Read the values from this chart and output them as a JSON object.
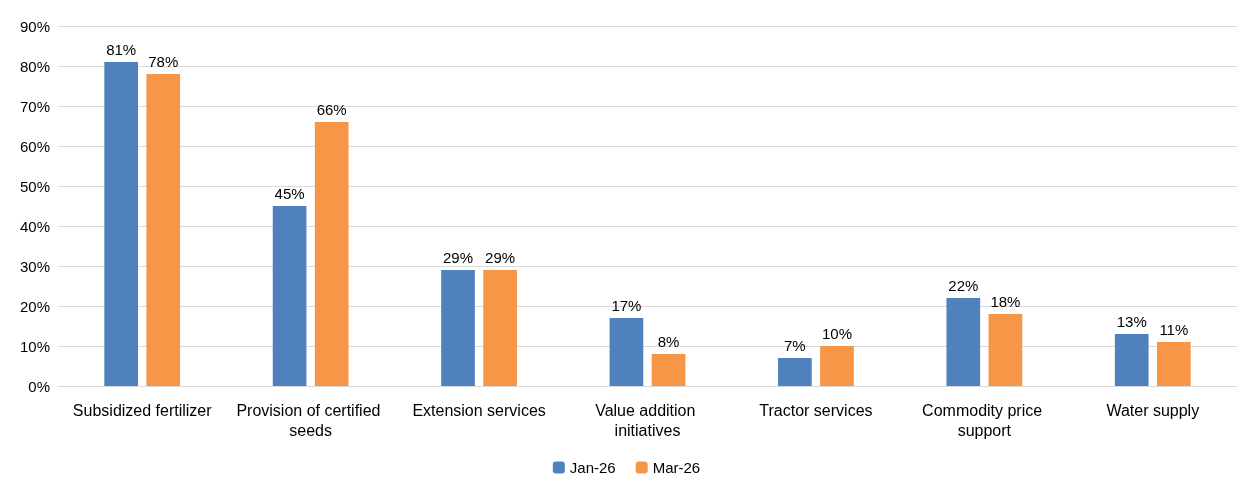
{
  "chart_data": {
    "type": "bar",
    "categories": [
      "Subsidized fertilizer",
      "Provision of certified seeds",
      "Extension services",
      "Value addition initiatives",
      "Tractor services",
      "Commodity price support",
      "Water supply"
    ],
    "series": [
      {
        "name": "Jan-26",
        "color": "#4f81bd",
        "values": [
          81,
          45,
          29,
          17,
          7,
          22,
          13
        ],
        "value_labels": [
          "81%",
          "45%",
          "29%",
          "17%",
          "7%",
          "22%",
          "13%"
        ]
      },
      {
        "name": "Mar-26",
        "color": "#f79646",
        "values": [
          78,
          66,
          29,
          8,
          10,
          18,
          11
        ],
        "value_labels": [
          "78%",
          "66%",
          "29%",
          "8%",
          "10%",
          "18%",
          "11%"
        ]
      }
    ],
    "ylim": [
      0,
      90
    ],
    "yticks": [
      {
        "value": 0,
        "label": "0%"
      },
      {
        "value": 10,
        "label": "10%"
      },
      {
        "value": 20,
        "label": "20%"
      },
      {
        "value": 30,
        "label": "30%"
      },
      {
        "value": 40,
        "label": "40%"
      },
      {
        "value": 50,
        "label": "50%"
      },
      {
        "value": 60,
        "label": "60%"
      },
      {
        "value": 70,
        "label": "70%"
      },
      {
        "value": 80,
        "label": "80%"
      },
      {
        "value": 90,
        "label": "90%"
      }
    ],
    "grid": "y",
    "legend": "bottom"
  }
}
